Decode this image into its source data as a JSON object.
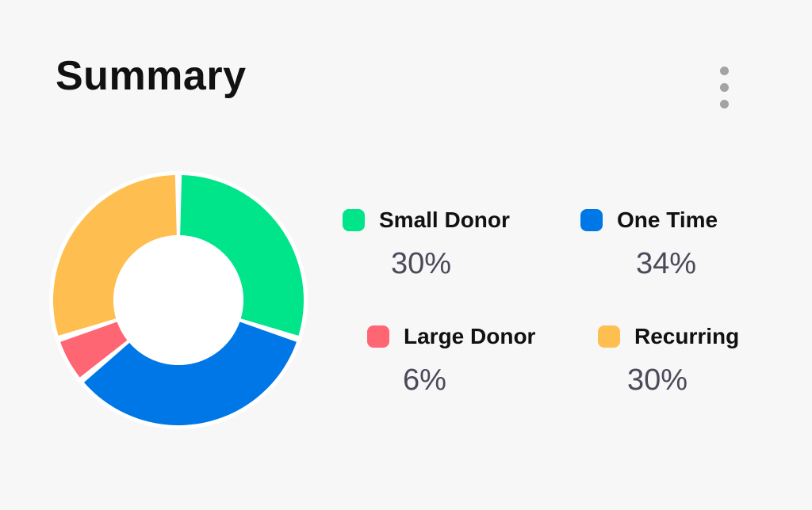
{
  "header": {
    "title": "Summary",
    "menu_icon": "more-vertical-icon"
  },
  "legend": {
    "small_donor": {
      "label": "Small Donor",
      "value": "30%"
    },
    "one_time": {
      "label": "One Time",
      "value": "34%"
    },
    "large_donor": {
      "label": "Large Donor",
      "value": "6%"
    },
    "recurring": {
      "label": "Recurring",
      "value": "30%"
    }
  },
  "chart_data": {
    "type": "pie",
    "title": "Summary",
    "categories": [
      "Small Donor",
      "One Time",
      "Large Donor",
      "Recurring"
    ],
    "values": [
      30,
      34,
      6,
      30
    ],
    "colors": [
      "#00e58a",
      "#0077e6",
      "#ff6673",
      "#ffbf50"
    ],
    "donut": true
  }
}
